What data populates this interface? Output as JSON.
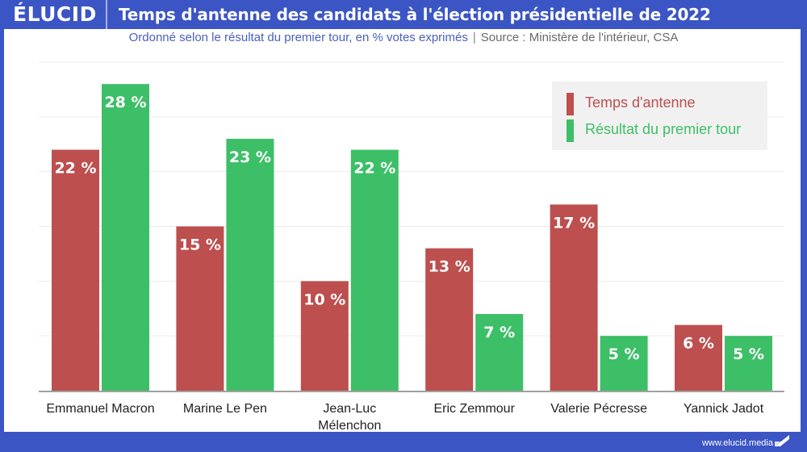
{
  "header": {
    "logo": "ÉLUCID",
    "title": "Temps d'antenne des candidats à l'élection présidentielle de 2022",
    "subtitle": "Ordonné selon le résultat du premier tour, en % votes exprimés",
    "separator": "|",
    "source": "Source : Ministère de l'intérieur, CSA"
  },
  "footer": {
    "url": "www.elucid.media",
    "logo_icon": "elucid-flag-icon"
  },
  "colors": {
    "header_bg": "#3b55c4",
    "temps_antenne": "#bd4f4f",
    "resultat": "#3dbf67",
    "gridline": "#ebebeb",
    "baseline": "#a0a0a0",
    "legend_bg": "#f1f1f1"
  },
  "chart_data": {
    "type": "bar",
    "title": "Temps d'antenne des candidats à l'élection présidentielle de 2022",
    "subtitle": "Ordonné selon le résultat du premier tour, en % votes exprimés | Source : Ministère de l'intérieur, CSA",
    "xlabel": "",
    "ylabel": "",
    "ylim": [
      0,
      30
    ],
    "yticks": [
      0,
      5,
      10,
      15,
      20,
      25,
      30
    ],
    "grid": true,
    "legend_position": "top-right",
    "categories": [
      [
        "Emmanuel Macron"
      ],
      [
        "Marine Le Pen"
      ],
      [
        "Jean-Luc",
        "Mélenchon"
      ],
      [
        "Eric Zemmour"
      ],
      [
        "Valerie Pécresse"
      ],
      [
        "Yannick Jadot"
      ]
    ],
    "series": [
      {
        "name": "Temps d'antenne",
        "color": "#bd4f4f",
        "values": [
          22,
          15,
          10,
          13,
          17,
          6
        ],
        "labels": [
          "22 %",
          "15 %",
          "10 %",
          "13 %",
          "17 %",
          "6 %"
        ]
      },
      {
        "name": "Résultat du premier tour",
        "color": "#3dbf67",
        "values": [
          28,
          23,
          22,
          7,
          5,
          5
        ],
        "labels": [
          "28 %",
          "23 %",
          "22 %",
          "7 %",
          "5 %",
          "5 %"
        ]
      }
    ]
  }
}
